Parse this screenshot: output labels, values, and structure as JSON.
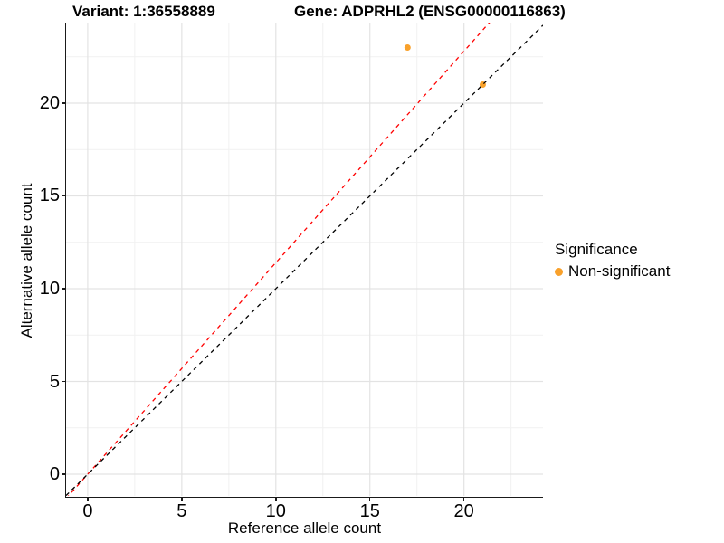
{
  "titles": {
    "variant": "Variant: 1:36558889",
    "gene": "Gene: ADPRHL2 (ENSG00000116863)"
  },
  "axes": {
    "x": {
      "label": "Reference allele count",
      "tick_labels": [
        "0",
        "5",
        "10",
        "15",
        "20"
      ]
    },
    "y": {
      "label": "Alternative allele count",
      "tick_labels": [
        "0",
        "5",
        "10",
        "15",
        "20"
      ]
    }
  },
  "legend": {
    "title": "Significance",
    "items": [
      {
        "label": "Non-significant",
        "color": "#F9A12B",
        "marker": "circle-icon"
      }
    ]
  },
  "colors": {
    "point_orange": "#F9A12B",
    "identity_line": "#000000",
    "ratio_line": "#FF0000",
    "grid_major": "#E3E3E3",
    "grid_minor": "#F1F1F1",
    "axis_line": "#1A1A1A",
    "text": "#000000"
  },
  "chart_data": {
    "type": "scatter",
    "title": "Variant: 1:36558889 — Gene: ADPRHL2 (ENSG00000116863)",
    "xlabel": "Reference allele count",
    "ylabel": "Alternative allele count",
    "xlim": [
      -1.15,
      24.2
    ],
    "ylim": [
      -1.17,
      24.34
    ],
    "x_ticks": [
      0,
      5,
      10,
      15,
      20
    ],
    "y_ticks": [
      0,
      5,
      10,
      15,
      20
    ],
    "minor_ticks": [
      2.5,
      7.5,
      12.5,
      17.5,
      22.5
    ],
    "grid": "major+minor",
    "legend_position": "right",
    "points": [
      {
        "x": 17,
        "y": 23,
        "series": "Non-significant",
        "color": "#F9A12B"
      },
      {
        "x": 21,
        "y": 21,
        "series": "Non-significant",
        "color": "#F9A12B"
      }
    ],
    "lines": [
      {
        "name": "ratio-line",
        "slope": 1.14,
        "intercept": 0,
        "color": "#FF0000",
        "dashed": true
      },
      {
        "name": "identity-line",
        "slope": 1.0,
        "intercept": 0,
        "color": "#000000",
        "dashed": true
      }
    ]
  }
}
